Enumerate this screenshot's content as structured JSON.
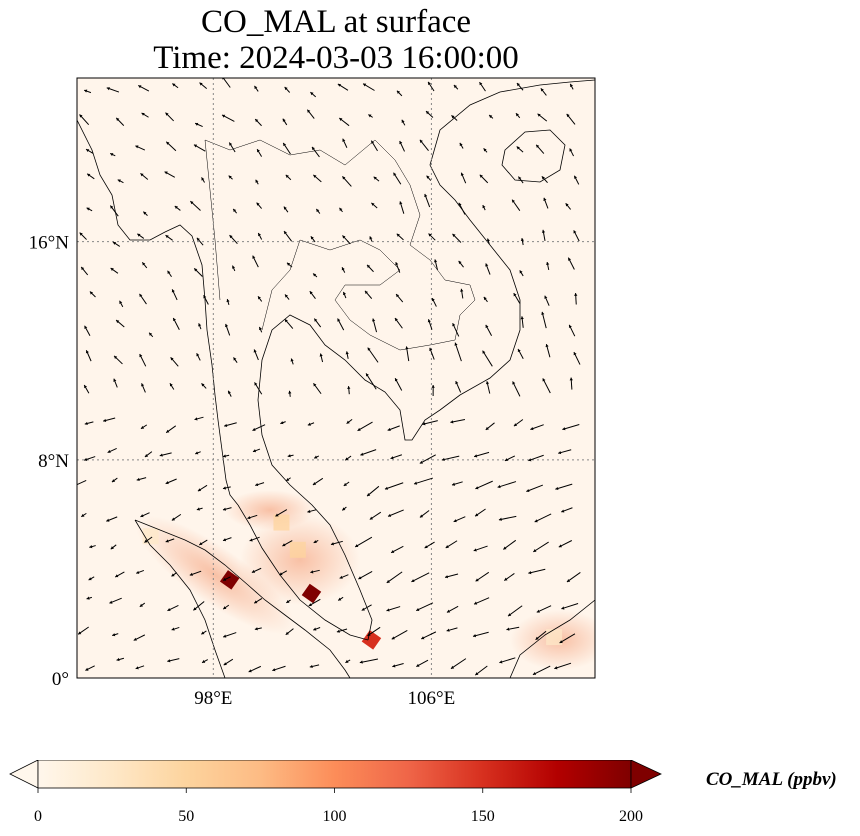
{
  "title": {
    "line1": "CO_MAL at surface",
    "line2": "Time: 2024-03-03 16:00:00"
  },
  "map": {
    "extent": {
      "lon": [
        93,
        112
      ],
      "lat": [
        0,
        22
      ]
    },
    "lat_ticks": [
      {
        "value": 0,
        "label": "0°"
      },
      {
        "value": 8,
        "label": "8°N"
      },
      {
        "value": 16,
        "label": "16°N"
      }
    ],
    "lon_ticks": [
      {
        "value": 98,
        "label": "98°E"
      },
      {
        "value": 106,
        "label": "106°E"
      }
    ],
    "background_color": "#fff5eb",
    "hotspots": [
      {
        "lon": 98.6,
        "lat": 3.6,
        "value": 200
      },
      {
        "lon": 101.6,
        "lat": 3.1,
        "value": 190
      },
      {
        "lon": 103.8,
        "lat": 1.4,
        "value": 150
      },
      {
        "lon": 100.5,
        "lat": 5.7,
        "value": 60
      },
      {
        "lon": 101.1,
        "lat": 4.7,
        "value": 55
      },
      {
        "lon": 95.7,
        "lat": 5.2,
        "value": 30
      },
      {
        "lon": 110.5,
        "lat": 1.5,
        "value": 25
      }
    ]
  },
  "colorbar": {
    "min": 0,
    "max": 200,
    "ticks": [
      {
        "value": 0,
        "label": "0"
      },
      {
        "value": 50,
        "label": "50"
      },
      {
        "value": 100,
        "label": "100"
      },
      {
        "value": 150,
        "label": "150"
      },
      {
        "value": 200,
        "label": "200"
      }
    ],
    "label": "CO_MAL (ppbv)",
    "colormap": "OrRd",
    "extend": "both"
  }
}
